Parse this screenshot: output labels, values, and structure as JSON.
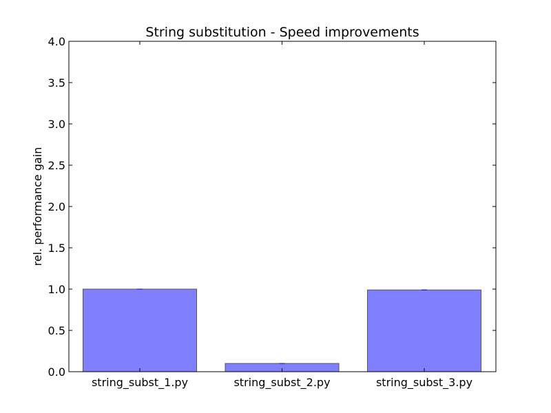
{
  "chart_data": {
    "type": "bar",
    "title": "String substitution - Speed improvements",
    "xlabel": "",
    "ylabel": "rel. performance gain",
    "categories": [
      "string_subst_1.py",
      "string_subst_2.py",
      "string_subst_3.py"
    ],
    "values": [
      1.0,
      0.1,
      0.99
    ],
    "ylim": [
      0,
      4.0
    ],
    "yticks": [
      "0.0",
      "0.5",
      "1.0",
      "1.5",
      "2.0",
      "2.5",
      "3.0",
      "3.5",
      "4.0"
    ],
    "grid": false,
    "colors": {
      "bar_fill": "#8080ff",
      "bar_edge": "#555555",
      "errbar": "#0000cc"
    }
  }
}
